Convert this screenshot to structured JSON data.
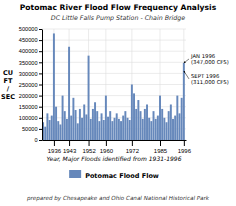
{
  "chart_data": {
    "type": "bar",
    "title": "Potomac River Flood Flow Frequency Analysis",
    "subtitle": "DC Little Falls Pump Station - Chain Bridge",
    "xlabel": "Year, Major Floods identified from 1931-1996",
    "ylabel": "CU\nFT\n/\nSEC",
    "footer": "prepared by Chesapeake and Ohio Canal National Historical Park",
    "x": [
      1931,
      1932,
      1933,
      1934,
      1935,
      1936,
      1937,
      1938,
      1939,
      1940,
      1941,
      1942,
      1943,
      1944,
      1945,
      1946,
      1947,
      1948,
      1949,
      1950,
      1951,
      1952,
      1953,
      1954,
      1955,
      1956,
      1957,
      1958,
      1959,
      1960,
      1961,
      1962,
      1963,
      1964,
      1965,
      1966,
      1967,
      1968,
      1969,
      1970,
      1971,
      1972,
      1973,
      1974,
      1975,
      1976,
      1977,
      1978,
      1979,
      1980,
      1981,
      1982,
      1983,
      1984,
      1985,
      1986,
      1987,
      1988,
      1989,
      1990,
      1991,
      1992,
      1993,
      1994,
      1995,
      1996
    ],
    "series": [
      {
        "name": "Potomac Flood Flow",
        "color": "#6688bb",
        "values": [
          80000,
          60000,
          120000,
          90000,
          110000,
          480000,
          150000,
          85000,
          70000,
          200000,
          130000,
          95000,
          420000,
          110000,
          190000,
          135000,
          75000,
          140000,
          100000,
          160000,
          115000,
          380000,
          95000,
          140000,
          170000,
          130000,
          85000,
          120000,
          90000,
          200000,
          105000,
          130000,
          85000,
          100000,
          120000,
          95000,
          85000,
          110000,
          130000,
          100000,
          90000,
          250000,
          210000,
          140000,
          180000,
          130000,
          95000,
          140000,
          160000,
          100000,
          85000,
          130000,
          95000,
          110000,
          200000,
          140000,
          100000,
          80000,
          130000,
          160000,
          95000,
          110000,
          200000,
          120000,
          190000,
          347000
        ]
      }
    ],
    "xlim": [
      1930.5,
      1997
    ],
    "xticks": [
      1936,
      1943,
      1952,
      1960,
      1972,
      1985,
      1996
    ],
    "ylim": [
      0,
      500000
    ],
    "yticks": [
      0,
      50000,
      100000,
      150000,
      200000,
      250000,
      300000,
      350000,
      400000,
      450000,
      500000
    ],
    "grid": true,
    "legend": "bottom",
    "annotations": [
      {
        "text": "JAN 1996\n(347,000 CFS)",
        "x": 1996,
        "y": 347000
      },
      {
        "text": "SEPT 1996\n(311,000 CFS)",
        "x": 1996,
        "y": 311000
      }
    ]
  }
}
